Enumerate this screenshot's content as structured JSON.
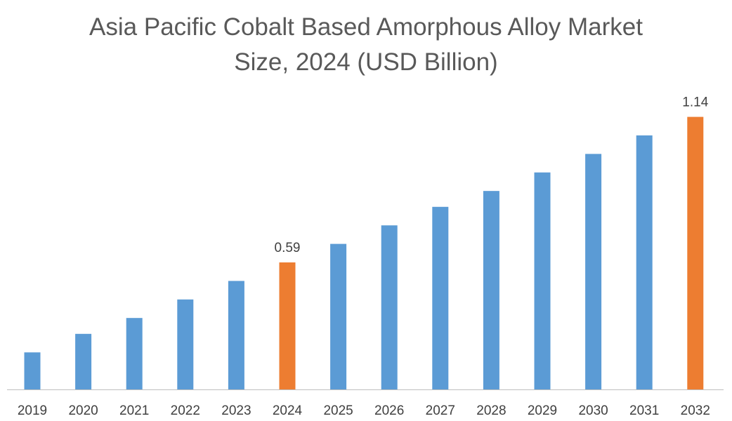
{
  "chart_data": {
    "type": "bar",
    "title": "Asia Pacific Cobalt Based Amorphous Alloy Market Size, 2024 (USD Billion)",
    "title_lines": [
      "Asia Pacific Cobalt Based Amorphous Alloy Market",
      "Size, 2024 (USD Billion)"
    ],
    "xlabel": "",
    "ylabel": "",
    "categories": [
      "2019",
      "2020",
      "2021",
      "2022",
      "2023",
      "2024",
      "2025",
      "2026",
      "2027",
      "2028",
      "2029",
      "2030",
      "2031",
      "2032"
    ],
    "values": [
      0.25,
      0.32,
      0.38,
      0.45,
      0.52,
      0.59,
      0.66,
      0.73,
      0.8,
      0.86,
      0.93,
      1.0,
      1.07,
      1.14
    ],
    "data_labels": {
      "5": "0.59",
      "13": "1.14"
    },
    "highlight_indices": [
      5,
      13
    ],
    "ylim": [
      0.11,
      1.29
    ],
    "grid": false,
    "colors": {
      "default": "#5B9BD5",
      "highlight": "#ED7D31",
      "axis": "#BFBFBF"
    }
  }
}
